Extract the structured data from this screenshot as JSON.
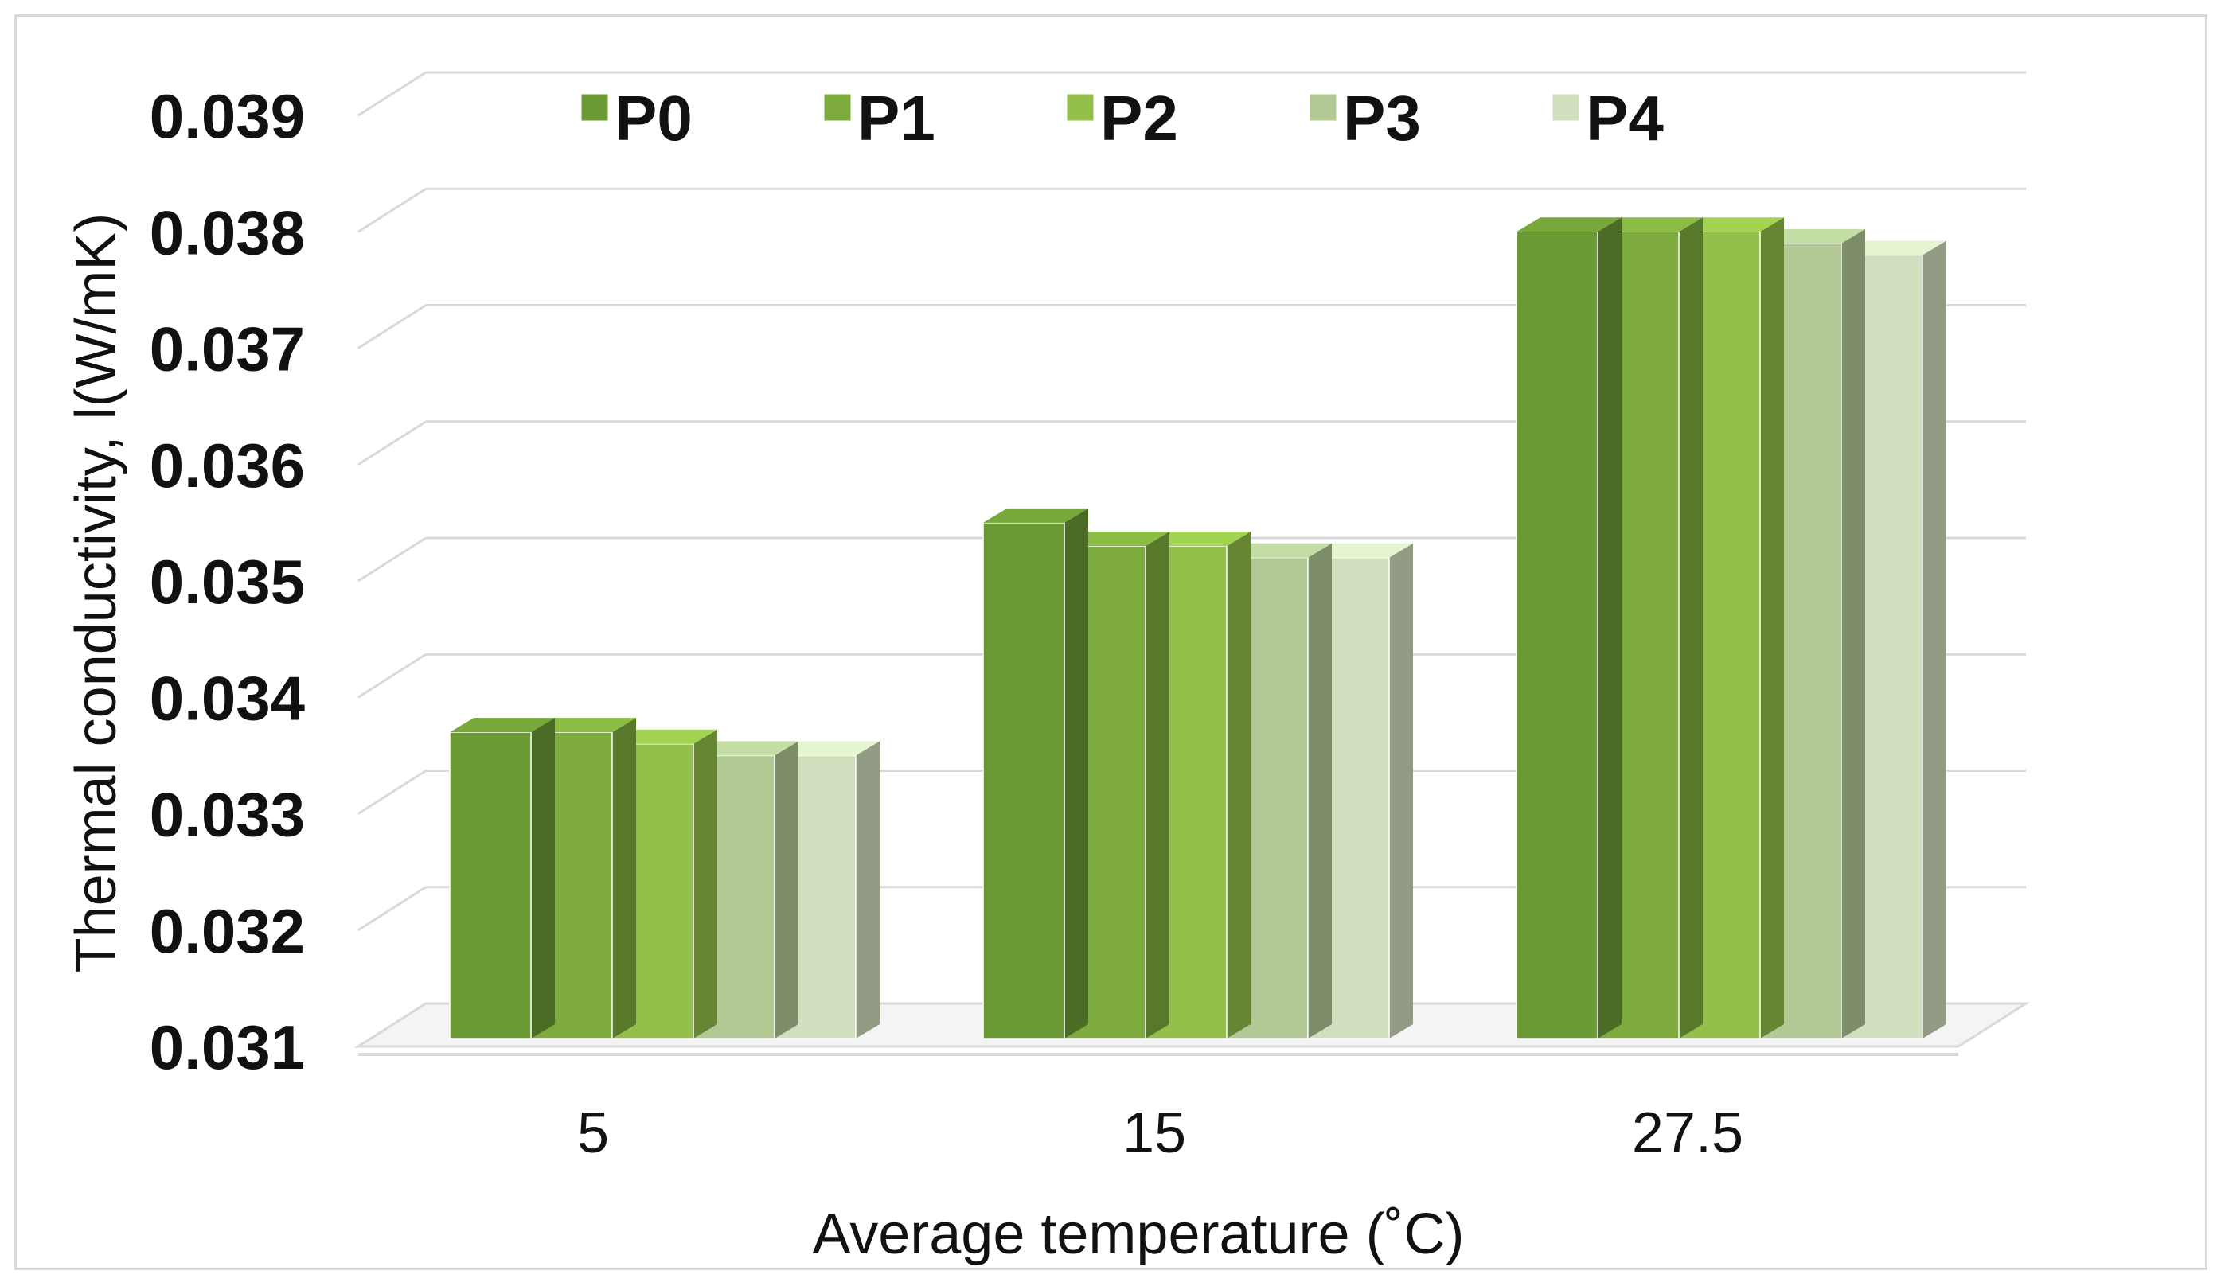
{
  "chart_data": {
    "type": "bar",
    "title": "",
    "xlabel": "Average temperature (˚C)",
    "ylabel": "Thermal conductivity, l(W/mK)",
    "categories": [
      "5",
      "15",
      "27.5"
    ],
    "ylim": [
      0.031,
      0.039
    ],
    "yticks": [
      "0.031",
      "0.032",
      "0.033",
      "0.034",
      "0.035",
      "0.036",
      "0.037",
      "0.038",
      "0.039"
    ],
    "grid": true,
    "legend_position": "top",
    "series": [
      {
        "name": "P0",
        "color": "#6b9a35",
        "values": [
          0.0337,
          0.0355,
          0.038
        ]
      },
      {
        "name": "P1",
        "color": "#7eab3d",
        "values": [
          0.0337,
          0.0353,
          0.038
        ]
      },
      {
        "name": "P2",
        "color": "#93c04a",
        "values": [
          0.0336,
          0.0353,
          0.038
        ]
      },
      {
        "name": "P3",
        "color": "#b2c996",
        "values": [
          0.0335,
          0.0352,
          0.0379
        ]
      },
      {
        "name": "P4",
        "color": "#d0dfbd",
        "values": [
          0.0335,
          0.0352,
          0.0378
        ]
      }
    ]
  }
}
